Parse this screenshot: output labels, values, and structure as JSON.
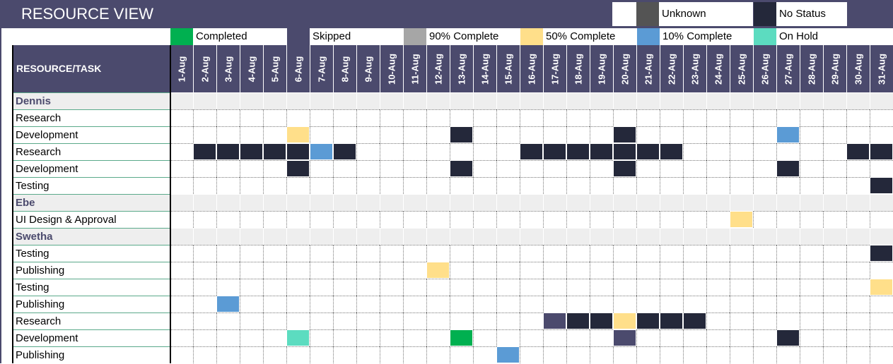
{
  "title": "RESOURCE VIEW",
  "status_colors": {
    "completed": "#00b050",
    "skipped": "#4b4a6d",
    "complete90": "#a6a6a6",
    "complete50": "#ffdf8a",
    "complete10": "#5b9bd5",
    "on_hold": "#5cdcc0",
    "unknown": "#545454",
    "no_status": "#24283a"
  },
  "legend_top": [
    {
      "key": "unknown",
      "label": "Unknown"
    },
    {
      "key": "no_status",
      "label": "No Status"
    }
  ],
  "legend": [
    {
      "key": "completed",
      "label": "Completed"
    },
    {
      "key": "skipped",
      "label": "Skipped"
    },
    {
      "key": "complete90",
      "label": "90% Complete"
    },
    {
      "key": "complete50",
      "label": "50% Complete"
    },
    {
      "key": "complete10",
      "label": "10% Complete"
    },
    {
      "key": "on_hold",
      "label": "On Hold"
    }
  ],
  "header_label": "RESOURCE/TASK",
  "days": [
    "1-Aug",
    "2-Aug",
    "3-Aug",
    "4-Aug",
    "5-Aug",
    "6-Aug",
    "7-Aug",
    "8-Aug",
    "9-Aug",
    "10-Aug",
    "11-Aug",
    "12-Aug",
    "13-Aug",
    "14-Aug",
    "15-Aug",
    "16-Aug",
    "17-Aug",
    "18-Aug",
    "19-Aug",
    "20-Aug",
    "21-Aug",
    "22-Aug",
    "23-Aug",
    "24-Aug",
    "25-Aug",
    "26-Aug",
    "27-Aug",
    "28-Aug",
    "29-Aug",
    "30-Aug",
    "31-Aug"
  ],
  "rows": [
    {
      "type": "group",
      "label": "Dennis",
      "cells": {}
    },
    {
      "type": "task",
      "label": "Research",
      "cells": {}
    },
    {
      "type": "task",
      "label": "Development",
      "cells": {
        "6": "complete50",
        "13": "no_status",
        "20": "no_status",
        "27": "complete10"
      }
    },
    {
      "type": "task",
      "label": "Research",
      "cells": {
        "2": "no_status",
        "3": "no_status",
        "4": "no_status",
        "5": "no_status",
        "6": "no_status",
        "7": "complete10",
        "8": "no_status",
        "16": "no_status",
        "17": "no_status",
        "18": "no_status",
        "19": "no_status",
        "20": "no_status",
        "21": "no_status",
        "22": "no_status",
        "30": "no_status",
        "31": "no_status"
      }
    },
    {
      "type": "task",
      "label": "Development",
      "cells": {
        "6": "no_status",
        "13": "no_status",
        "20": "no_status",
        "27": "no_status"
      }
    },
    {
      "type": "task",
      "label": "Testing",
      "cells": {
        "31": "no_status"
      }
    },
    {
      "type": "group",
      "label": "Ebe",
      "cells": {}
    },
    {
      "type": "task",
      "label": "UI Design & Approval",
      "cells": {
        "25": "complete50"
      }
    },
    {
      "type": "group",
      "label": "Swetha",
      "cells": {}
    },
    {
      "type": "task",
      "label": "Testing",
      "cells": {
        "31": "no_status"
      }
    },
    {
      "type": "task",
      "label": "Publishing",
      "cells": {
        "12": "complete50"
      }
    },
    {
      "type": "task",
      "label": "Testing",
      "cells": {
        "31": "complete50"
      }
    },
    {
      "type": "task",
      "label": "Publishing",
      "cells": {
        "3": "complete10"
      }
    },
    {
      "type": "task",
      "label": "Research",
      "cells": {
        "17": "skipped",
        "18": "no_status",
        "19": "no_status",
        "20": "complete50",
        "21": "no_status",
        "22": "no_status",
        "23": "no_status"
      }
    },
    {
      "type": "task",
      "label": "Development",
      "cells": {
        "6": "on_hold",
        "13": "completed",
        "20": "skipped",
        "27": "no_status"
      }
    },
    {
      "type": "task",
      "label": "Publishing",
      "cells": {
        "15": "complete10"
      }
    }
  ]
}
